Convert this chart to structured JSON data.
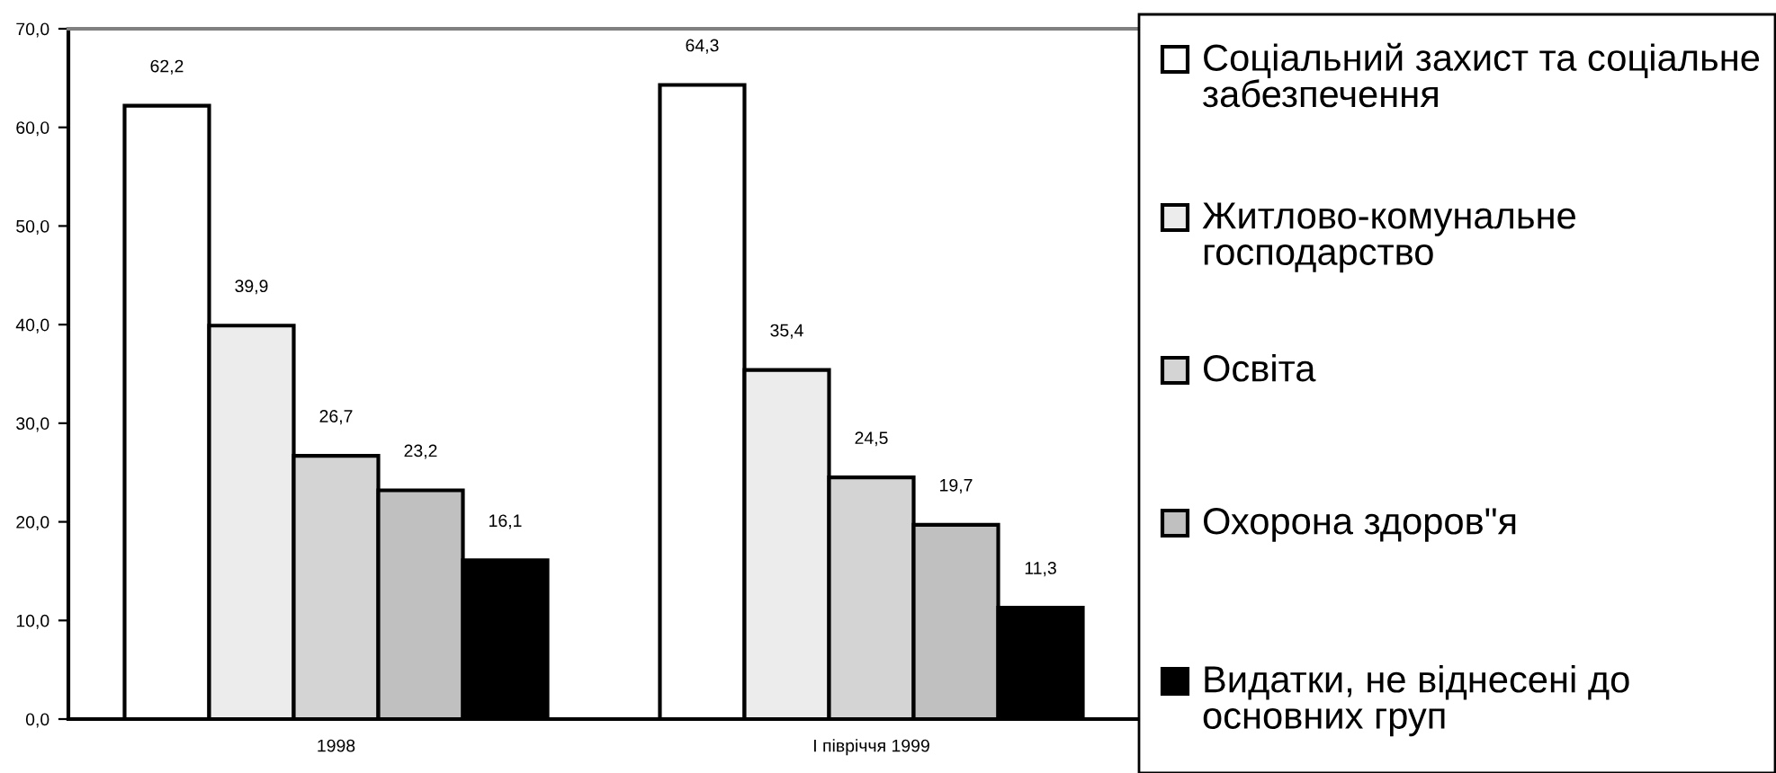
{
  "chart_data": {
    "type": "bar",
    "categories": [
      "1998",
      "І півріччя 1999"
    ],
    "series": [
      {
        "name": "Соціальний захист та соціальне забезпечення",
        "color": "#ffffff",
        "values": [
          62.2,
          64.3
        ],
        "value_labels": [
          "62,2",
          "64,3"
        ]
      },
      {
        "name": "Житлово-комунальне господарство",
        "color": "#ececec",
        "values": [
          39.9,
          35.4
        ],
        "value_labels": [
          "39,9",
          "35,4"
        ]
      },
      {
        "name": "Освіта",
        "color": "#d4d4d4",
        "values": [
          26.7,
          24.5
        ],
        "value_labels": [
          "26,7",
          "24,5"
        ]
      },
      {
        "name": "Охорона здоров\"я",
        "color": "#c0c0c0",
        "values": [
          23.2,
          19.7
        ],
        "value_labels": [
          "23,2",
          "19,7"
        ]
      },
      {
        "name": "Видатки, не віднесені до основних груп",
        "color": "#000000",
        "values": [
          16.1,
          11.3
        ],
        "value_labels": [
          "16,1",
          "11,3"
        ]
      }
    ],
    "ylim": [
      0,
      70
    ],
    "yticks": [
      {
        "value": 0,
        "label": "0,0"
      },
      {
        "value": 10,
        "label": "10,0"
      },
      {
        "value": 20,
        "label": "20,0"
      },
      {
        "value": 30,
        "label": "30,0"
      },
      {
        "value": 40,
        "label": "40,0"
      },
      {
        "value": 50,
        "label": "50,0"
      },
      {
        "value": 60,
        "label": "60,0"
      },
      {
        "value": 70,
        "label": "70,0"
      }
    ],
    "grid": false,
    "legend": "right"
  }
}
